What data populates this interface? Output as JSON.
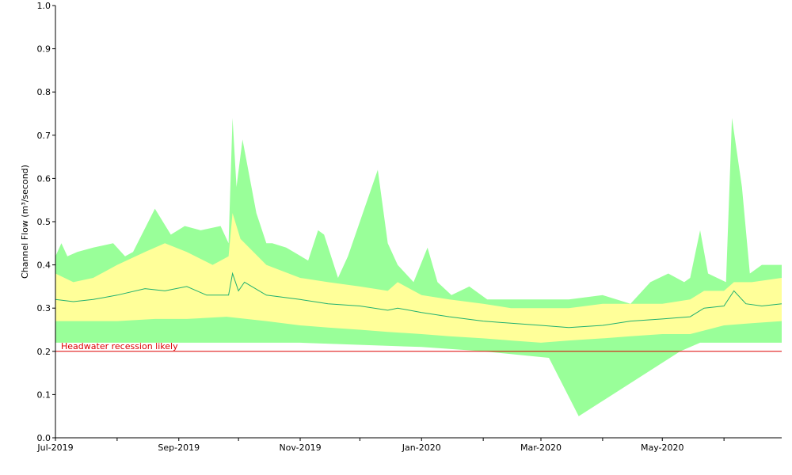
{
  "chart_data": {
    "type": "area",
    "title": "",
    "xlabel": "",
    "ylabel": "Channel Flow (m³/second)",
    "ylim": [
      0,
      1.0
    ],
    "xlim": [
      "2019-07-01",
      "2020-06-30"
    ],
    "y_ticks": [
      {
        "value": 0.0,
        "label": "0.0"
      },
      {
        "value": 0.1,
        "label": "0.1"
      },
      {
        "value": 0.2,
        "label": "0.2"
      },
      {
        "value": 0.3,
        "label": "0.3"
      },
      {
        "value": 0.4,
        "label": "0.4"
      },
      {
        "value": 0.5,
        "label": "0.5"
      },
      {
        "value": 0.6,
        "label": "0.6"
      },
      {
        "value": 0.7,
        "label": "0.7"
      },
      {
        "value": 0.8,
        "label": "0.8"
      },
      {
        "value": 0.9,
        "label": "0.9"
      },
      {
        "value": 1.0,
        "label": "1.0"
      }
    ],
    "x_ticks": [
      {
        "date": "2019-07-01",
        "label": "Jul-2019"
      },
      {
        "date": "2019-08-01",
        "label": ""
      },
      {
        "date": "2019-09-01",
        "label": "Sep-2019"
      },
      {
        "date": "2019-10-01",
        "label": ""
      },
      {
        "date": "2019-11-01",
        "label": "Nov-2019"
      },
      {
        "date": "2019-12-01",
        "label": ""
      },
      {
        "date": "2020-01-01",
        "label": "Jan-2020"
      },
      {
        "date": "2020-02-01",
        "label": ""
      },
      {
        "date": "2020-03-01",
        "label": "Mar-2020"
      },
      {
        "date": "2020-04-01",
        "label": ""
      },
      {
        "date": "2020-05-01",
        "label": "May-2020"
      },
      {
        "date": "2020-06-01",
        "label": ""
      }
    ],
    "grid": false,
    "colors": {
      "outer_band": "#99ff99",
      "inner_band": "#ffff99",
      "median": "#20b070",
      "threshold": "#dd0000",
      "axis": "#000000"
    },
    "reference_lines": [
      {
        "y": 0.2,
        "label": "Headwater recession likely"
      }
    ],
    "series": [
      {
        "role": "outer_max",
        "x": [
          "2019-07-01",
          "2019-07-04",
          "2019-07-07",
          "2019-07-12",
          "2019-07-20",
          "2019-07-30",
          "2019-08-05",
          "2019-08-09",
          "2019-08-20",
          "2019-08-28",
          "2019-09-04",
          "2019-09-12",
          "2019-09-22",
          "2019-09-26",
          "2019-09-28",
          "2019-09-30",
          "2019-10-03",
          "2019-10-10",
          "2019-10-15",
          "2019-10-18",
          "2019-10-25",
          "2019-11-05",
          "2019-11-10",
          "2019-11-13",
          "2019-11-20",
          "2019-11-25",
          "2019-12-10",
          "2019-12-15",
          "2019-12-20",
          "2019-12-28",
          "2020-01-04",
          "2020-01-09",
          "2020-01-16",
          "2020-01-25",
          "2020-02-03",
          "2020-02-12",
          "2020-03-01",
          "2020-03-15",
          "2020-04-01",
          "2020-04-15",
          "2020-04-25",
          "2020-05-04",
          "2020-05-12",
          "2020-05-15",
          "2020-05-20",
          "2020-05-24",
          "2020-06-02",
          "2020-06-05",
          "2020-06-10",
          "2020-06-14",
          "2020-06-20",
          "2020-06-30"
        ],
        "values": [
          0.42,
          0.45,
          0.42,
          0.43,
          0.44,
          0.45,
          0.42,
          0.43,
          0.53,
          0.47,
          0.49,
          0.48,
          0.49,
          0.45,
          0.74,
          0.58,
          0.69,
          0.52,
          0.45,
          0.45,
          0.44,
          0.41,
          0.48,
          0.47,
          0.37,
          0.42,
          0.62,
          0.45,
          0.4,
          0.36,
          0.44,
          0.36,
          0.33,
          0.35,
          0.32,
          0.32,
          0.32,
          0.32,
          0.33,
          0.31,
          0.36,
          0.38,
          0.36,
          0.37,
          0.48,
          0.38,
          0.36,
          0.74,
          0.58,
          0.38,
          0.4,
          0.4
        ]
      },
      {
        "role": "inner_max",
        "x": [
          "2019-07-01",
          "2019-07-10",
          "2019-07-20",
          "2019-08-01",
          "2019-08-15",
          "2019-08-25",
          "2019-09-05",
          "2019-09-18",
          "2019-09-26",
          "2019-09-28",
          "2019-10-02",
          "2019-10-15",
          "2019-11-01",
          "2019-11-15",
          "2019-12-01",
          "2019-12-15",
          "2019-12-20",
          "2020-01-01",
          "2020-01-15",
          "2020-02-01",
          "2020-02-15",
          "2020-03-01",
          "2020-03-15",
          "2020-04-01",
          "2020-04-15",
          "2020-05-01",
          "2020-05-15",
          "2020-05-22",
          "2020-06-01",
          "2020-06-06",
          "2020-06-15",
          "2020-06-30"
        ],
        "values": [
          0.38,
          0.36,
          0.37,
          0.4,
          0.43,
          0.45,
          0.43,
          0.4,
          0.42,
          0.52,
          0.46,
          0.4,
          0.37,
          0.36,
          0.35,
          0.34,
          0.36,
          0.33,
          0.32,
          0.31,
          0.3,
          0.3,
          0.3,
          0.31,
          0.31,
          0.31,
          0.32,
          0.34,
          0.34,
          0.36,
          0.36,
          0.37
        ]
      },
      {
        "role": "median",
        "x": [
          "2019-07-01",
          "2019-07-10",
          "2019-07-20",
          "2019-08-01",
          "2019-08-15",
          "2019-08-25",
          "2019-09-05",
          "2019-09-15",
          "2019-09-26",
          "2019-09-28",
          "2019-10-01",
          "2019-10-04",
          "2019-10-15",
          "2019-11-01",
          "2019-11-15",
          "2019-12-01",
          "2019-12-15",
          "2019-12-20",
          "2020-01-01",
          "2020-01-15",
          "2020-02-01",
          "2020-02-15",
          "2020-03-01",
          "2020-03-15",
          "2020-04-01",
          "2020-04-15",
          "2020-05-01",
          "2020-05-15",
          "2020-05-22",
          "2020-06-01",
          "2020-06-06",
          "2020-06-12",
          "2020-06-20",
          "2020-06-30"
        ],
        "values": [
          0.32,
          0.315,
          0.32,
          0.33,
          0.345,
          0.34,
          0.35,
          0.33,
          0.33,
          0.38,
          0.34,
          0.36,
          0.33,
          0.32,
          0.31,
          0.305,
          0.295,
          0.3,
          0.29,
          0.28,
          0.27,
          0.265,
          0.26,
          0.255,
          0.26,
          0.27,
          0.275,
          0.28,
          0.3,
          0.305,
          0.34,
          0.31,
          0.305,
          0.31
        ]
      },
      {
        "role": "inner_min",
        "x": [
          "2019-07-01",
          "2019-07-15",
          "2019-08-01",
          "2019-08-20",
          "2019-09-05",
          "2019-09-25",
          "2019-10-15",
          "2019-11-01",
          "2019-11-15",
          "2019-12-01",
          "2019-12-15",
          "2020-01-01",
          "2020-01-15",
          "2020-02-01",
          "2020-02-15",
          "2020-03-01",
          "2020-03-15",
          "2020-04-01",
          "2020-04-15",
          "2020-05-01",
          "2020-05-15",
          "2020-06-01",
          "2020-06-15",
          "2020-06-30"
        ],
        "values": [
          0.27,
          0.27,
          0.27,
          0.275,
          0.275,
          0.28,
          0.27,
          0.26,
          0.255,
          0.25,
          0.245,
          0.24,
          0.235,
          0.23,
          0.225,
          0.22,
          0.225,
          0.23,
          0.235,
          0.24,
          0.24,
          0.26,
          0.265,
          0.27
        ]
      },
      {
        "role": "outer_min",
        "x": [
          "2019-07-01",
          "2019-09-01",
          "2019-11-01",
          "2020-01-01",
          "2020-02-01",
          "2020-03-05",
          "2020-03-20",
          "2020-05-10",
          "2020-05-20",
          "2020-06-30"
        ],
        "values": [
          0.22,
          0.22,
          0.22,
          0.21,
          0.2,
          0.185,
          0.05,
          0.2,
          0.22,
          0.22
        ]
      }
    ]
  }
}
